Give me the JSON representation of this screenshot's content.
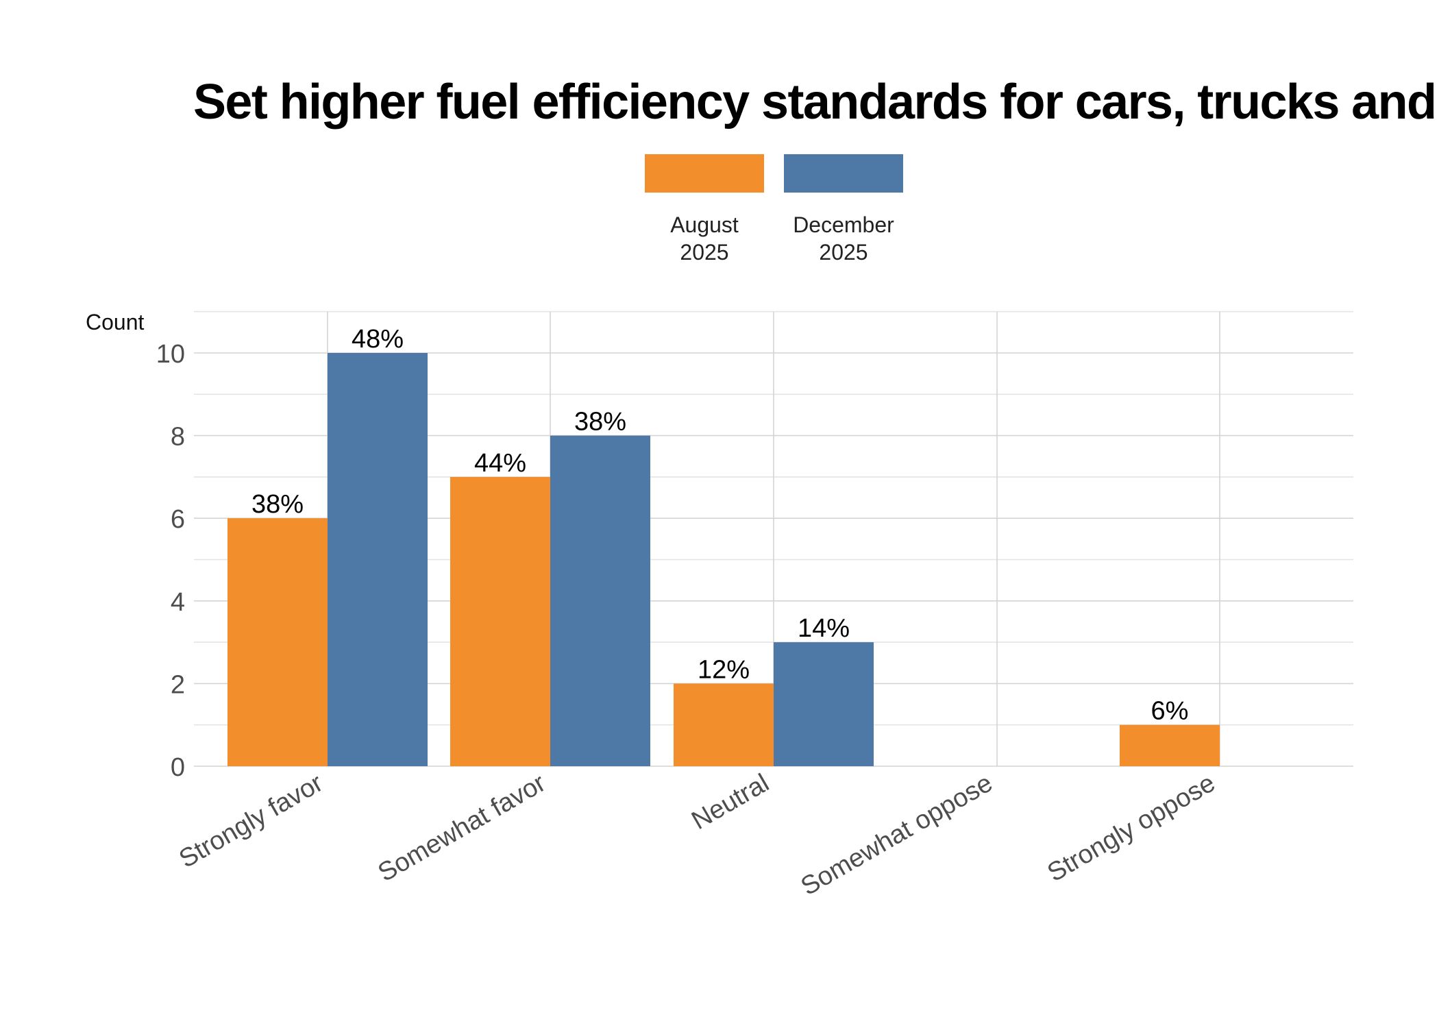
{
  "chart_data": {
    "type": "bar",
    "title": "Set higher fuel efficiency standards for cars, trucks and buses",
    "xlabel": "",
    "ylabel": "Count",
    "categories": [
      "Strongly favor",
      "Somewhat favor",
      "Neutral",
      "Somewhat oppose",
      "Strongly oppose"
    ],
    "series": [
      {
        "name": "August\n2025",
        "color": "#f28e2b",
        "values": [
          6,
          7,
          2,
          0,
          1
        ],
        "labels": [
          "38%",
          "44%",
          "12%",
          "",
          "6%"
        ]
      },
      {
        "name": "December\n2025",
        "color": "#4e79a7",
        "values": [
          10,
          8,
          3,
          0,
          0
        ],
        "labels": [
          "48%",
          "38%",
          "14%",
          "",
          ""
        ]
      }
    ],
    "ylim": [
      0,
      11
    ],
    "yticks": [
      0,
      2,
      4,
      6,
      8,
      10
    ],
    "grid": true,
    "legend_position": "top-center"
  }
}
